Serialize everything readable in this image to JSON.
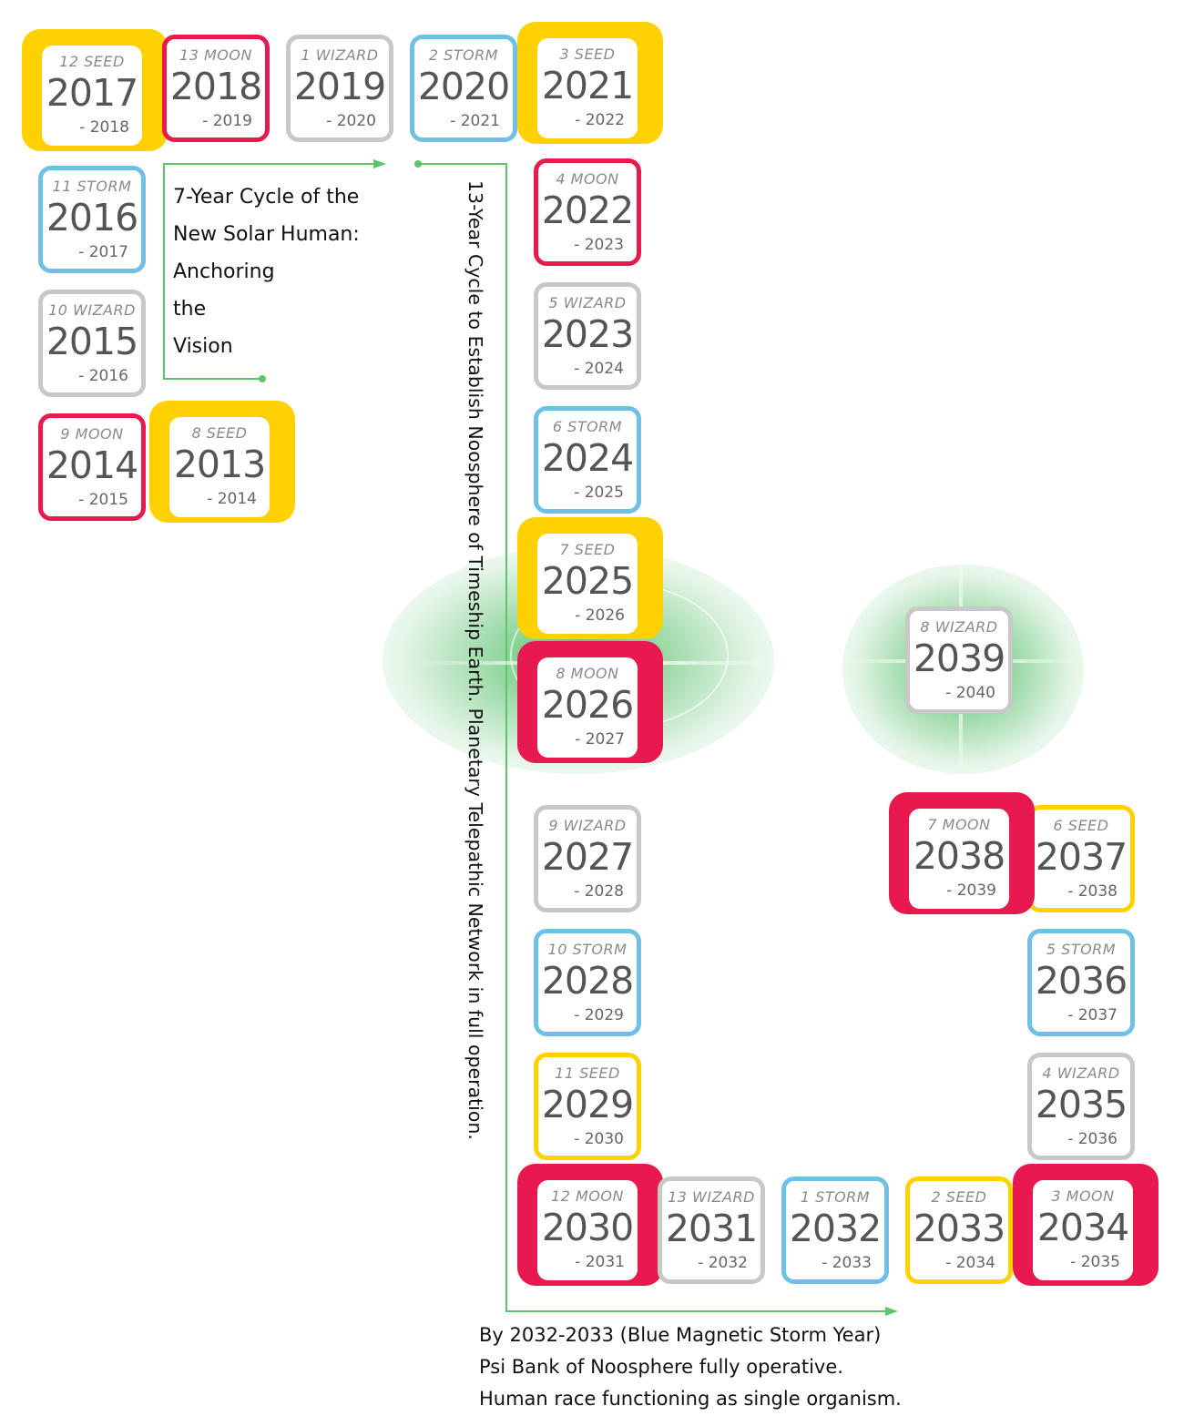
{
  "colors": {
    "seed": "#FFD100",
    "moon": "#E8194F",
    "wizard": "#C8C8C8",
    "storm": "#6EC1E4",
    "connector": "#5CC46B",
    "glow": "#33B24A"
  },
  "cycle_caption": {
    "lines": [
      "7-Year Cycle of the",
      "New Solar Human:",
      "Anchoring",
      "the",
      "Vision"
    ]
  },
  "vertical_caption": "13-Year Cycle to Establish Noosphere of Timeship Earth. Planetary Telepathic Network in full operation.",
  "bottom_notes": [
    "By 2032-2033 (Blue Magnetic Storm Year)",
    "Psi Bank of Noosphere fully operative.",
    "Human race functioning as single organism."
  ],
  "years": [
    {
      "tone": "8 SEED",
      "start": "2013",
      "end": "- 2014",
      "kind": "seed",
      "style": "filled"
    },
    {
      "tone": "9 MOON",
      "start": "2014",
      "end": "- 2015",
      "kind": "moon",
      "style": "outlined"
    },
    {
      "tone": "10 WIZARD",
      "start": "2015",
      "end": "- 2016",
      "kind": "wizard",
      "style": "outlined"
    },
    {
      "tone": "11 STORM",
      "start": "2016",
      "end": "- 2017",
      "kind": "storm",
      "style": "outlined"
    },
    {
      "tone": "12 SEED",
      "start": "2017",
      "end": "- 2018",
      "kind": "seed",
      "style": "filled"
    },
    {
      "tone": "13 MOON",
      "start": "2018",
      "end": "- 2019",
      "kind": "moon",
      "style": "outlined"
    },
    {
      "tone": "1 WIZARD",
      "start": "2019",
      "end": "- 2020",
      "kind": "wizard",
      "style": "outlined"
    },
    {
      "tone": "2 STORM",
      "start": "2020",
      "end": "- 2021",
      "kind": "storm",
      "style": "outlined"
    },
    {
      "tone": "3 SEED",
      "start": "2021",
      "end": "- 2022",
      "kind": "seed",
      "style": "filled"
    },
    {
      "tone": "4 MOON",
      "start": "2022",
      "end": "- 2023",
      "kind": "moon",
      "style": "outlined"
    },
    {
      "tone": "5 WIZARD",
      "start": "2023",
      "end": "- 2024",
      "kind": "wizard",
      "style": "outlined"
    },
    {
      "tone": "6 STORM",
      "start": "2024",
      "end": "- 2025",
      "kind": "storm",
      "style": "outlined"
    },
    {
      "tone": "7 SEED",
      "start": "2025",
      "end": "- 2026",
      "kind": "seed",
      "style": "filled"
    },
    {
      "tone": "8 MOON",
      "start": "2026",
      "end": "- 2027",
      "kind": "moon",
      "style": "filled"
    },
    {
      "tone": "9 WIZARD",
      "start": "2027",
      "end": "- 2028",
      "kind": "wizard",
      "style": "outlined"
    },
    {
      "tone": "10 STORM",
      "start": "2028",
      "end": "- 2029",
      "kind": "storm",
      "style": "outlined"
    },
    {
      "tone": "11 SEED",
      "start": "2029",
      "end": "- 2030",
      "kind": "seed",
      "style": "outlined"
    },
    {
      "tone": "12 MOON",
      "start": "2030",
      "end": "- 2031",
      "kind": "moon",
      "style": "filled"
    },
    {
      "tone": "13 WIZARD",
      "start": "2031",
      "end": "- 2032",
      "kind": "wizard",
      "style": "outlined"
    },
    {
      "tone": "1 STORM",
      "start": "2032",
      "end": "- 2033",
      "kind": "storm",
      "style": "outlined"
    },
    {
      "tone": "2 SEED",
      "start": "2033",
      "end": "- 2034",
      "kind": "seed",
      "style": "outlined"
    },
    {
      "tone": "3 MOON",
      "start": "2034",
      "end": "- 2035",
      "kind": "moon",
      "style": "filled"
    },
    {
      "tone": "4 WIZARD",
      "start": "2035",
      "end": "- 2036",
      "kind": "wizard",
      "style": "outlined"
    },
    {
      "tone": "5 STORM",
      "start": "2036",
      "end": "- 2037",
      "kind": "storm",
      "style": "outlined"
    },
    {
      "tone": "6 SEED",
      "start": "2037",
      "end": "- 2038",
      "kind": "seed",
      "style": "outlined"
    },
    {
      "tone": "7 MOON",
      "start": "2038",
      "end": "- 2039",
      "kind": "moon",
      "style": "filled"
    },
    {
      "tone": "8 WIZARD",
      "start": "2039",
      "end": "- 2040",
      "kind": "wizard",
      "style": "outlined"
    }
  ]
}
